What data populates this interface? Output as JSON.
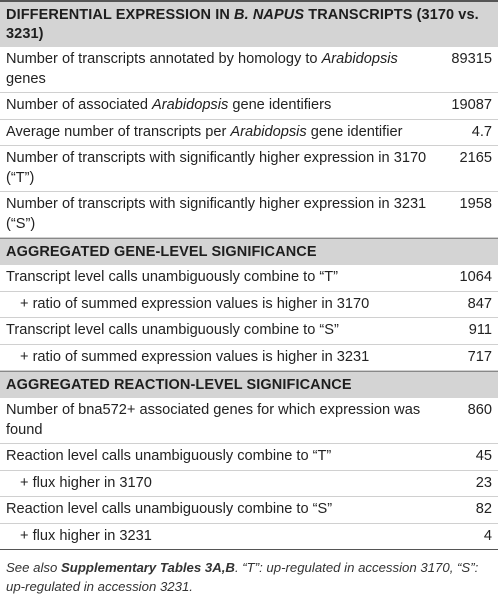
{
  "sections": [
    {
      "title_pre": "DIFFERENTIAL EXPRESSION IN ",
      "title_em": "B. NAPUS",
      "title_post": " TRANSCRIPTS (3170 vs. 3231)",
      "rows": [
        {
          "pre": "Number of transcripts annotated by homology to ",
          "em": "Arabidopsis",
          "post": " genes",
          "value": "89315"
        },
        {
          "pre": "Number of associated ",
          "em": "Arabidopsis",
          "post": " gene identifiers",
          "value": "19087"
        },
        {
          "pre": "Average number of transcripts per ",
          "em": "Arabidopsis",
          "post": " gene identifier",
          "value": "4.7"
        },
        {
          "pre": "Number of transcripts with significantly higher expression in 3170 (“T”)",
          "em": "",
          "post": "",
          "value": "2165"
        },
        {
          "pre": "Number of transcripts with significantly higher expression in 3231 (“S”)",
          "em": "",
          "post": "",
          "value": "1958"
        }
      ]
    },
    {
      "title_pre": "AGGREGATED GENE-LEVEL SIGNIFICANCE",
      "rows": [
        {
          "pre": "Transcript level calls unambiguously combine to “T”",
          "value": "1064"
        },
        {
          "pre": "+ ratio of summed expression values is higher in 3170",
          "value": "847",
          "indent": true
        },
        {
          "pre": "Transcript level calls unambiguously combine to “S”",
          "value": "911"
        },
        {
          "pre": "+ ratio of summed expression values is higher in 3231",
          "value": "717",
          "indent": true
        }
      ]
    },
    {
      "title_pre": "AGGREGATED REACTION-LEVEL SIGNIFICANCE",
      "rows": [
        {
          "pre": "Number of bna572+ associated genes for which expression was found",
          "value": "860"
        },
        {
          "pre": "Reaction level calls unambiguously combine to “T”",
          "value": "45"
        },
        {
          "pre": "+ flux higher in 3170",
          "value": "23",
          "indent": true
        },
        {
          "pre": "Reaction level calls unambiguously combine to “S”",
          "value": "82"
        },
        {
          "pre": "+ flux higher in 3231",
          "value": "4",
          "indent": true
        }
      ]
    }
  ],
  "footnote": {
    "pre": "See also ",
    "bold": "Supplementary Tables 3A,B",
    "post": ". “T”: up-regulated in accession 3170, “S”: up-regulated in accession 3231."
  }
}
